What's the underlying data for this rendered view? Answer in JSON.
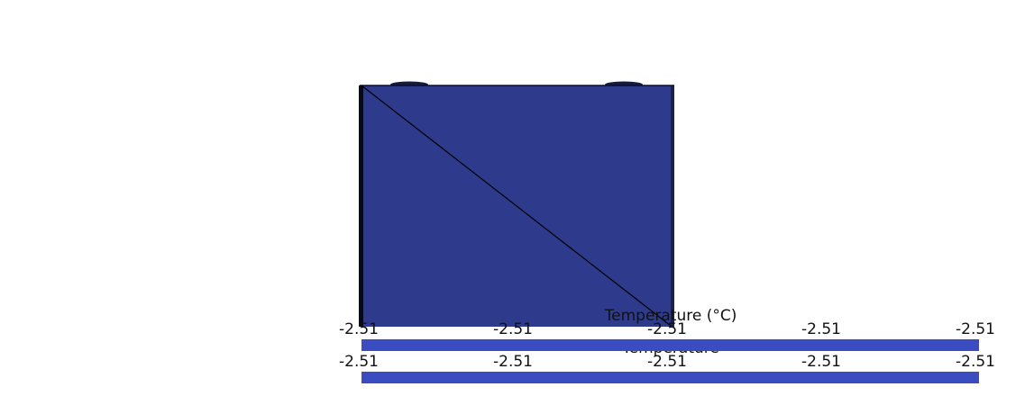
{
  "colors": {
    "background": "#ffffff",
    "model_fill": "#2e3b8c",
    "model_edge": "#0a0f2a",
    "colorbar_fill": "#3b4cc0",
    "text": "#111111"
  },
  "colorbars": [
    {
      "title": "Temperature (°C)",
      "ticks": [
        "-2.51",
        "-2.51",
        "-2.51",
        "-2.51",
        "-2.51"
      ]
    },
    {
      "title": "Temperature",
      "ticks": [
        "-2.51",
        "-2.51",
        "-2.51",
        "-2.51",
        "-2.51"
      ]
    }
  ]
}
